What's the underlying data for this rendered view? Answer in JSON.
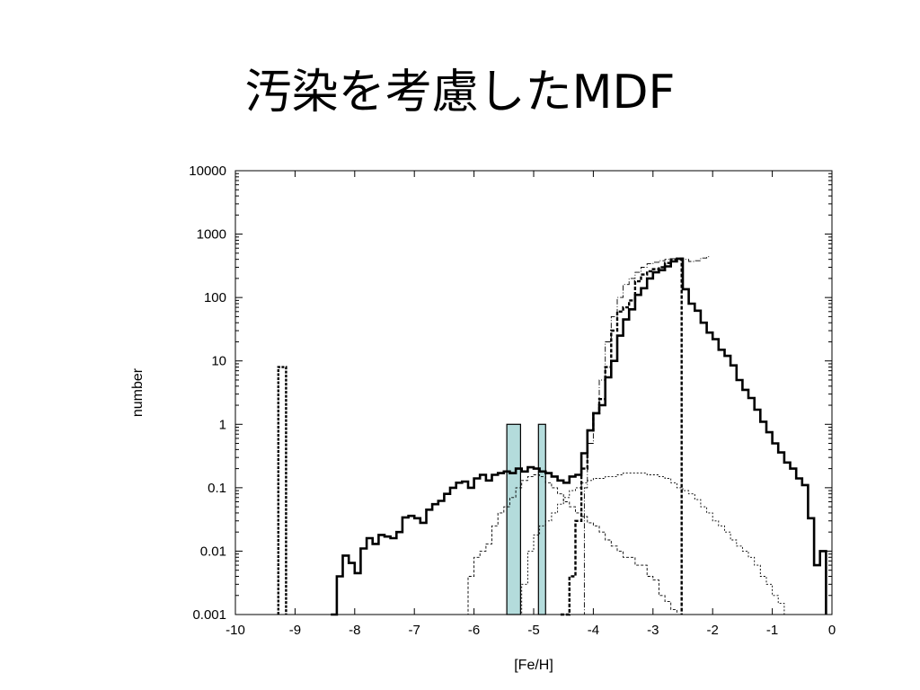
{
  "slide": {
    "title": "汚染を考慮したMDF"
  },
  "chart_data": {
    "type": "step-histogram",
    "xlabel": "[Fe/H]",
    "ylabel": "number",
    "xlim": [
      -10,
      0
    ],
    "ylim": [
      0.001,
      10000
    ],
    "yscale": "log",
    "grid": false,
    "x_ticks": [
      "-10",
      "-9",
      "-8",
      "-7",
      "-6",
      "-5",
      "-4",
      "-3",
      "-2",
      "-1",
      "0"
    ],
    "y_ticks": [
      "0.001",
      "0.01",
      "0.1",
      "1",
      "10",
      "100",
      "1000",
      "10000"
    ],
    "colors": {
      "shaded_bars": "#b4dcdc",
      "lines": "#000000"
    },
    "shaded_bars": [
      {
        "x0": -5.45,
        "x1": -5.22,
        "value": 1
      },
      {
        "x0": -4.92,
        "x1": -4.8,
        "value": 1
      }
    ],
    "series": [
      {
        "style": "solid-thick",
        "points": [
          [
            -8.4,
            0.001
          ],
          [
            -8.3,
            0.004
          ],
          [
            -8.2,
            0.0085
          ],
          [
            -8.1,
            0.0065
          ],
          [
            -8.0,
            0.0045
          ],
          [
            -7.9,
            0.011
          ],
          [
            -7.8,
            0.016
          ],
          [
            -7.7,
            0.013
          ],
          [
            -7.6,
            0.018
          ],
          [
            -7.5,
            0.017
          ],
          [
            -7.4,
            0.016
          ],
          [
            -7.3,
            0.02
          ],
          [
            -7.2,
            0.034
          ],
          [
            -7.1,
            0.036
          ],
          [
            -7.0,
            0.033
          ],
          [
            -6.9,
            0.028
          ],
          [
            -6.8,
            0.045
          ],
          [
            -6.7,
            0.055
          ],
          [
            -6.6,
            0.062
          ],
          [
            -6.5,
            0.08
          ],
          [
            -6.4,
            0.1
          ],
          [
            -6.3,
            0.12
          ],
          [
            -6.2,
            0.125
          ],
          [
            -6.1,
            0.1
          ],
          [
            -6.0,
            0.14
          ],
          [
            -5.9,
            0.16
          ],
          [
            -5.8,
            0.13
          ],
          [
            -5.7,
            0.16
          ],
          [
            -5.6,
            0.17
          ],
          [
            -5.5,
            0.18
          ],
          [
            -5.4,
            0.17
          ],
          [
            -5.3,
            0.2
          ],
          [
            -5.2,
            0.18
          ],
          [
            -5.1,
            0.21
          ],
          [
            -5.0,
            0.2
          ],
          [
            -4.9,
            0.18
          ],
          [
            -4.8,
            0.17
          ],
          [
            -4.7,
            0.15
          ],
          [
            -4.6,
            0.13
          ],
          [
            -4.5,
            0.12
          ],
          [
            -4.4,
            0.15
          ],
          [
            -4.3,
            0.16
          ],
          [
            -4.2,
            0.35
          ],
          [
            -4.1,
            0.8
          ],
          [
            -4.0,
            1.5
          ],
          [
            -3.9,
            2.0
          ],
          [
            -3.8,
            5.5
          ],
          [
            -3.7,
            10
          ],
          [
            -3.6,
            25
          ],
          [
            -3.5,
            45
          ],
          [
            -3.4,
            65
          ],
          [
            -3.3,
            110
          ],
          [
            -3.2,
            140
          ],
          [
            -3.1,
            200
          ],
          [
            -3.0,
            250
          ],
          [
            -2.9,
            270
          ],
          [
            -2.8,
            310
          ],
          [
            -2.7,
            370
          ],
          [
            -2.6,
            410
          ],
          [
            -2.5,
            135
          ],
          [
            -2.4,
            80
          ],
          [
            -2.3,
            62
          ],
          [
            -2.2,
            40
          ],
          [
            -2.1,
            28
          ],
          [
            -2.0,
            22
          ],
          [
            -1.9,
            15
          ],
          [
            -1.8,
            12
          ],
          [
            -1.7,
            8.5
          ],
          [
            -1.6,
            5
          ],
          [
            -1.5,
            3.5
          ],
          [
            -1.4,
            2.6
          ],
          [
            -1.3,
            1.7
          ],
          [
            -1.2,
            1.1
          ],
          [
            -1.1,
            0.75
          ],
          [
            -1.0,
            0.5
          ],
          [
            -0.9,
            0.36
          ],
          [
            -0.8,
            0.25
          ],
          [
            -0.7,
            0.2
          ],
          [
            -0.6,
            0.14
          ],
          [
            -0.5,
            0.11
          ],
          [
            -0.4,
            0.033
          ],
          [
            -0.3,
            0.006
          ],
          [
            -0.2,
            0.01
          ],
          [
            -0.1,
            0.001
          ]
        ]
      },
      {
        "style": "dashed-thick",
        "points": [
          [
            -4.55,
            0.001
          ],
          [
            -4.4,
            0.004
          ],
          [
            -4.3,
            0.03
          ],
          [
            -4.2,
            0.2
          ],
          [
            -4.1,
            0.8
          ],
          [
            -4.0,
            1.5
          ],
          [
            -3.9,
            2.5
          ],
          [
            -3.8,
            8
          ],
          [
            -3.7,
            30
          ],
          [
            -3.6,
            60
          ],
          [
            -3.5,
            70
          ],
          [
            -3.4,
            90
          ],
          [
            -3.3,
            180
          ],
          [
            -3.2,
            230
          ],
          [
            -3.1,
            260
          ],
          [
            -3.0,
            280
          ],
          [
            -2.9,
            300
          ],
          [
            -2.8,
            350
          ],
          [
            -2.7,
            400
          ],
          [
            -2.6,
            400
          ],
          [
            -2.52,
            0.001
          ]
        ]
      },
      {
        "style": "dashed-thin",
        "points": [
          [
            -6.2,
            0.001
          ],
          [
            -6.1,
            0.004
          ],
          [
            -6.0,
            0.008
          ],
          [
            -5.9,
            0.01
          ],
          [
            -5.8,
            0.013
          ],
          [
            -5.7,
            0.025
          ],
          [
            -5.6,
            0.04
          ],
          [
            -5.5,
            0.05
          ],
          [
            -5.4,
            0.07
          ],
          [
            -5.3,
            0.1
          ],
          [
            -5.2,
            0.13
          ],
          [
            -5.1,
            0.15
          ],
          [
            -5.0,
            0.16
          ],
          [
            -4.9,
            0.15
          ],
          [
            -4.8,
            0.12
          ],
          [
            -4.7,
            0.1
          ],
          [
            -4.6,
            0.08
          ],
          [
            -4.5,
            0.06
          ],
          [
            -4.4,
            0.05
          ],
          [
            -4.3,
            0.04
          ],
          [
            -4.2,
            0.035
          ],
          [
            -4.1,
            0.028
          ],
          [
            -4.0,
            0.025
          ],
          [
            -3.9,
            0.02
          ],
          [
            -3.8,
            0.015
          ],
          [
            -3.7,
            0.012
          ],
          [
            -3.6,
            0.01
          ],
          [
            -3.5,
            0.008
          ],
          [
            -3.4,
            0.008
          ],
          [
            -3.3,
            0.006
          ],
          [
            -3.2,
            0.006
          ],
          [
            -3.1,
            0.004
          ],
          [
            -3.0,
            0.0035
          ],
          [
            -2.9,
            0.002
          ],
          [
            -2.8,
            0.0016
          ],
          [
            -2.7,
            0.0012
          ],
          [
            -2.6,
            0.001
          ]
        ]
      },
      {
        "style": "dotted-thin",
        "points": [
          [
            -5.3,
            0.001
          ],
          [
            -5.2,
            0.003
          ],
          [
            -5.1,
            0.01
          ],
          [
            -5.0,
            0.018
          ],
          [
            -4.9,
            0.025
          ],
          [
            -4.8,
            0.03
          ],
          [
            -4.7,
            0.04
          ],
          [
            -4.6,
            0.055
          ],
          [
            -4.5,
            0.07
          ],
          [
            -4.4,
            0.09
          ],
          [
            -4.3,
            0.1
          ],
          [
            -4.2,
            0.12
          ],
          [
            -4.1,
            0.13
          ],
          [
            -4.0,
            0.14
          ],
          [
            -3.9,
            0.14
          ],
          [
            -3.8,
            0.15
          ],
          [
            -3.7,
            0.15
          ],
          [
            -3.6,
            0.16
          ],
          [
            -3.5,
            0.17
          ],
          [
            -3.4,
            0.17
          ],
          [
            -3.3,
            0.17
          ],
          [
            -3.2,
            0.17
          ],
          [
            -3.1,
            0.16
          ],
          [
            -3.0,
            0.16
          ],
          [
            -2.9,
            0.15
          ],
          [
            -2.8,
            0.14
          ],
          [
            -2.7,
            0.12
          ],
          [
            -2.6,
            0.1
          ],
          [
            -2.5,
            0.09
          ],
          [
            -2.4,
            0.08
          ],
          [
            -2.3,
            0.065
          ],
          [
            -2.2,
            0.05
          ],
          [
            -2.1,
            0.04
          ],
          [
            -2.0,
            0.03
          ],
          [
            -1.9,
            0.025
          ],
          [
            -1.8,
            0.02
          ],
          [
            -1.7,
            0.015
          ],
          [
            -1.6,
            0.012
          ],
          [
            -1.5,
            0.01
          ],
          [
            -1.4,
            0.008
          ],
          [
            -1.3,
            0.006
          ],
          [
            -1.2,
            0.004
          ],
          [
            -1.1,
            0.003
          ],
          [
            -1.0,
            0.002
          ],
          [
            -0.9,
            0.0015
          ],
          [
            -0.8,
            0.001
          ]
        ]
      },
      {
        "style": "dashdot-thin",
        "points": [
          [
            -4.2,
            0.001
          ],
          [
            -4.15,
            0.1
          ],
          [
            -4.1,
            0.5
          ],
          [
            -4.0,
            1.5
          ],
          [
            -3.9,
            5
          ],
          [
            -3.8,
            20
          ],
          [
            -3.7,
            50
          ],
          [
            -3.6,
            100
          ],
          [
            -3.5,
            160
          ],
          [
            -3.4,
            200
          ],
          [
            -3.3,
            250
          ],
          [
            -3.2,
            300
          ],
          [
            -3.1,
            340
          ],
          [
            -3.0,
            360
          ],
          [
            -2.9,
            380
          ],
          [
            -2.8,
            400
          ],
          [
            -2.7,
            410
          ],
          [
            -2.6,
            420
          ],
          [
            -2.5,
            400
          ],
          [
            -2.4,
            370
          ],
          [
            -2.3,
            380
          ],
          [
            -2.2,
            420
          ],
          [
            -2.1,
            440
          ],
          [
            -2.05,
            440
          ]
        ]
      },
      {
        "style": "dashed-thick-spike",
        "points": [
          [
            -9.28,
            0.001
          ],
          [
            -9.28,
            8
          ],
          [
            -9.15,
            8
          ],
          [
            -9.15,
            0.001
          ]
        ]
      }
    ]
  }
}
